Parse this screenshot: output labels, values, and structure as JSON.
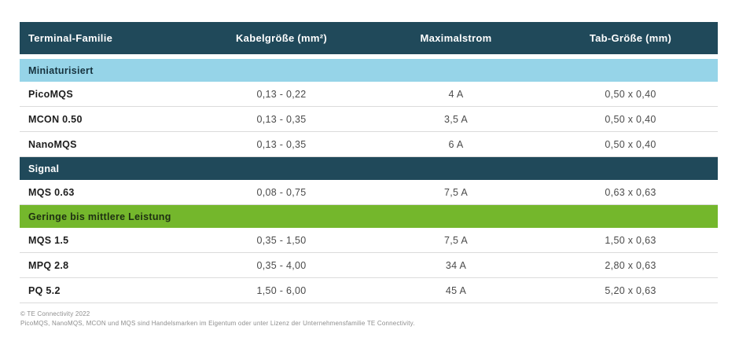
{
  "colors": {
    "header_background": "#20495A",
    "section_miniaturisiert": "#96D4E8",
    "section_signal": "#20495A",
    "section_leistung": "#74B72C",
    "row_divider": "#DBDBDB"
  },
  "table": {
    "columns": [
      {
        "label": "Terminal-Familie"
      },
      {
        "label": "Kabelgröße (mm²)"
      },
      {
        "label": "Maximalstrom"
      },
      {
        "label": "Tab-Größe (mm)"
      }
    ],
    "sections": [
      {
        "title": "Miniaturisiert",
        "style": "light-blue",
        "rows": [
          {
            "family": "PicoMQS",
            "cable": "0,13 - 0,22",
            "current": "4 A",
            "tab": "0,50 x 0,40"
          },
          {
            "family": "MCON 0.50",
            "cable": "0,13 - 0,35",
            "current": "3,5 A",
            "tab": "0,50 x 0,40"
          },
          {
            "family": "NanoMQS",
            "cable": "0,13 - 0,35",
            "current": "6 A",
            "tab": "0,50 x 0,40"
          }
        ]
      },
      {
        "title": "Signal",
        "style": "dark",
        "rows": [
          {
            "family": "MQS 0.63",
            "cable": "0,08 - 0,75",
            "current": "7,5 A",
            "tab": "0,63 x 0,63"
          }
        ]
      },
      {
        "title": "Geringe bis mittlere Leistung",
        "style": "green",
        "rows": [
          {
            "family": "MQS 1.5",
            "cable": "0,35 - 1,50",
            "current": "7,5 A",
            "tab": "1,50 x 0,63"
          },
          {
            "family": "MPQ 2.8",
            "cable": "0,35 - 4,00",
            "current": "34 A",
            "tab": "2,80 x 0,63"
          },
          {
            "family": "PQ 5.2",
            "cable": "1,50 - 6,00",
            "current": "45 A",
            "tab": "5,20 x 0,63"
          }
        ]
      }
    ]
  },
  "footer": {
    "copyright": "© TE Connectivity 2022",
    "trademark": "PicoMQS, NanoMQS, MCON und MQS sind Handelsmarken im Eigentum oder unter Lizenz der Unternehmensfamilie TE Connectivity."
  }
}
